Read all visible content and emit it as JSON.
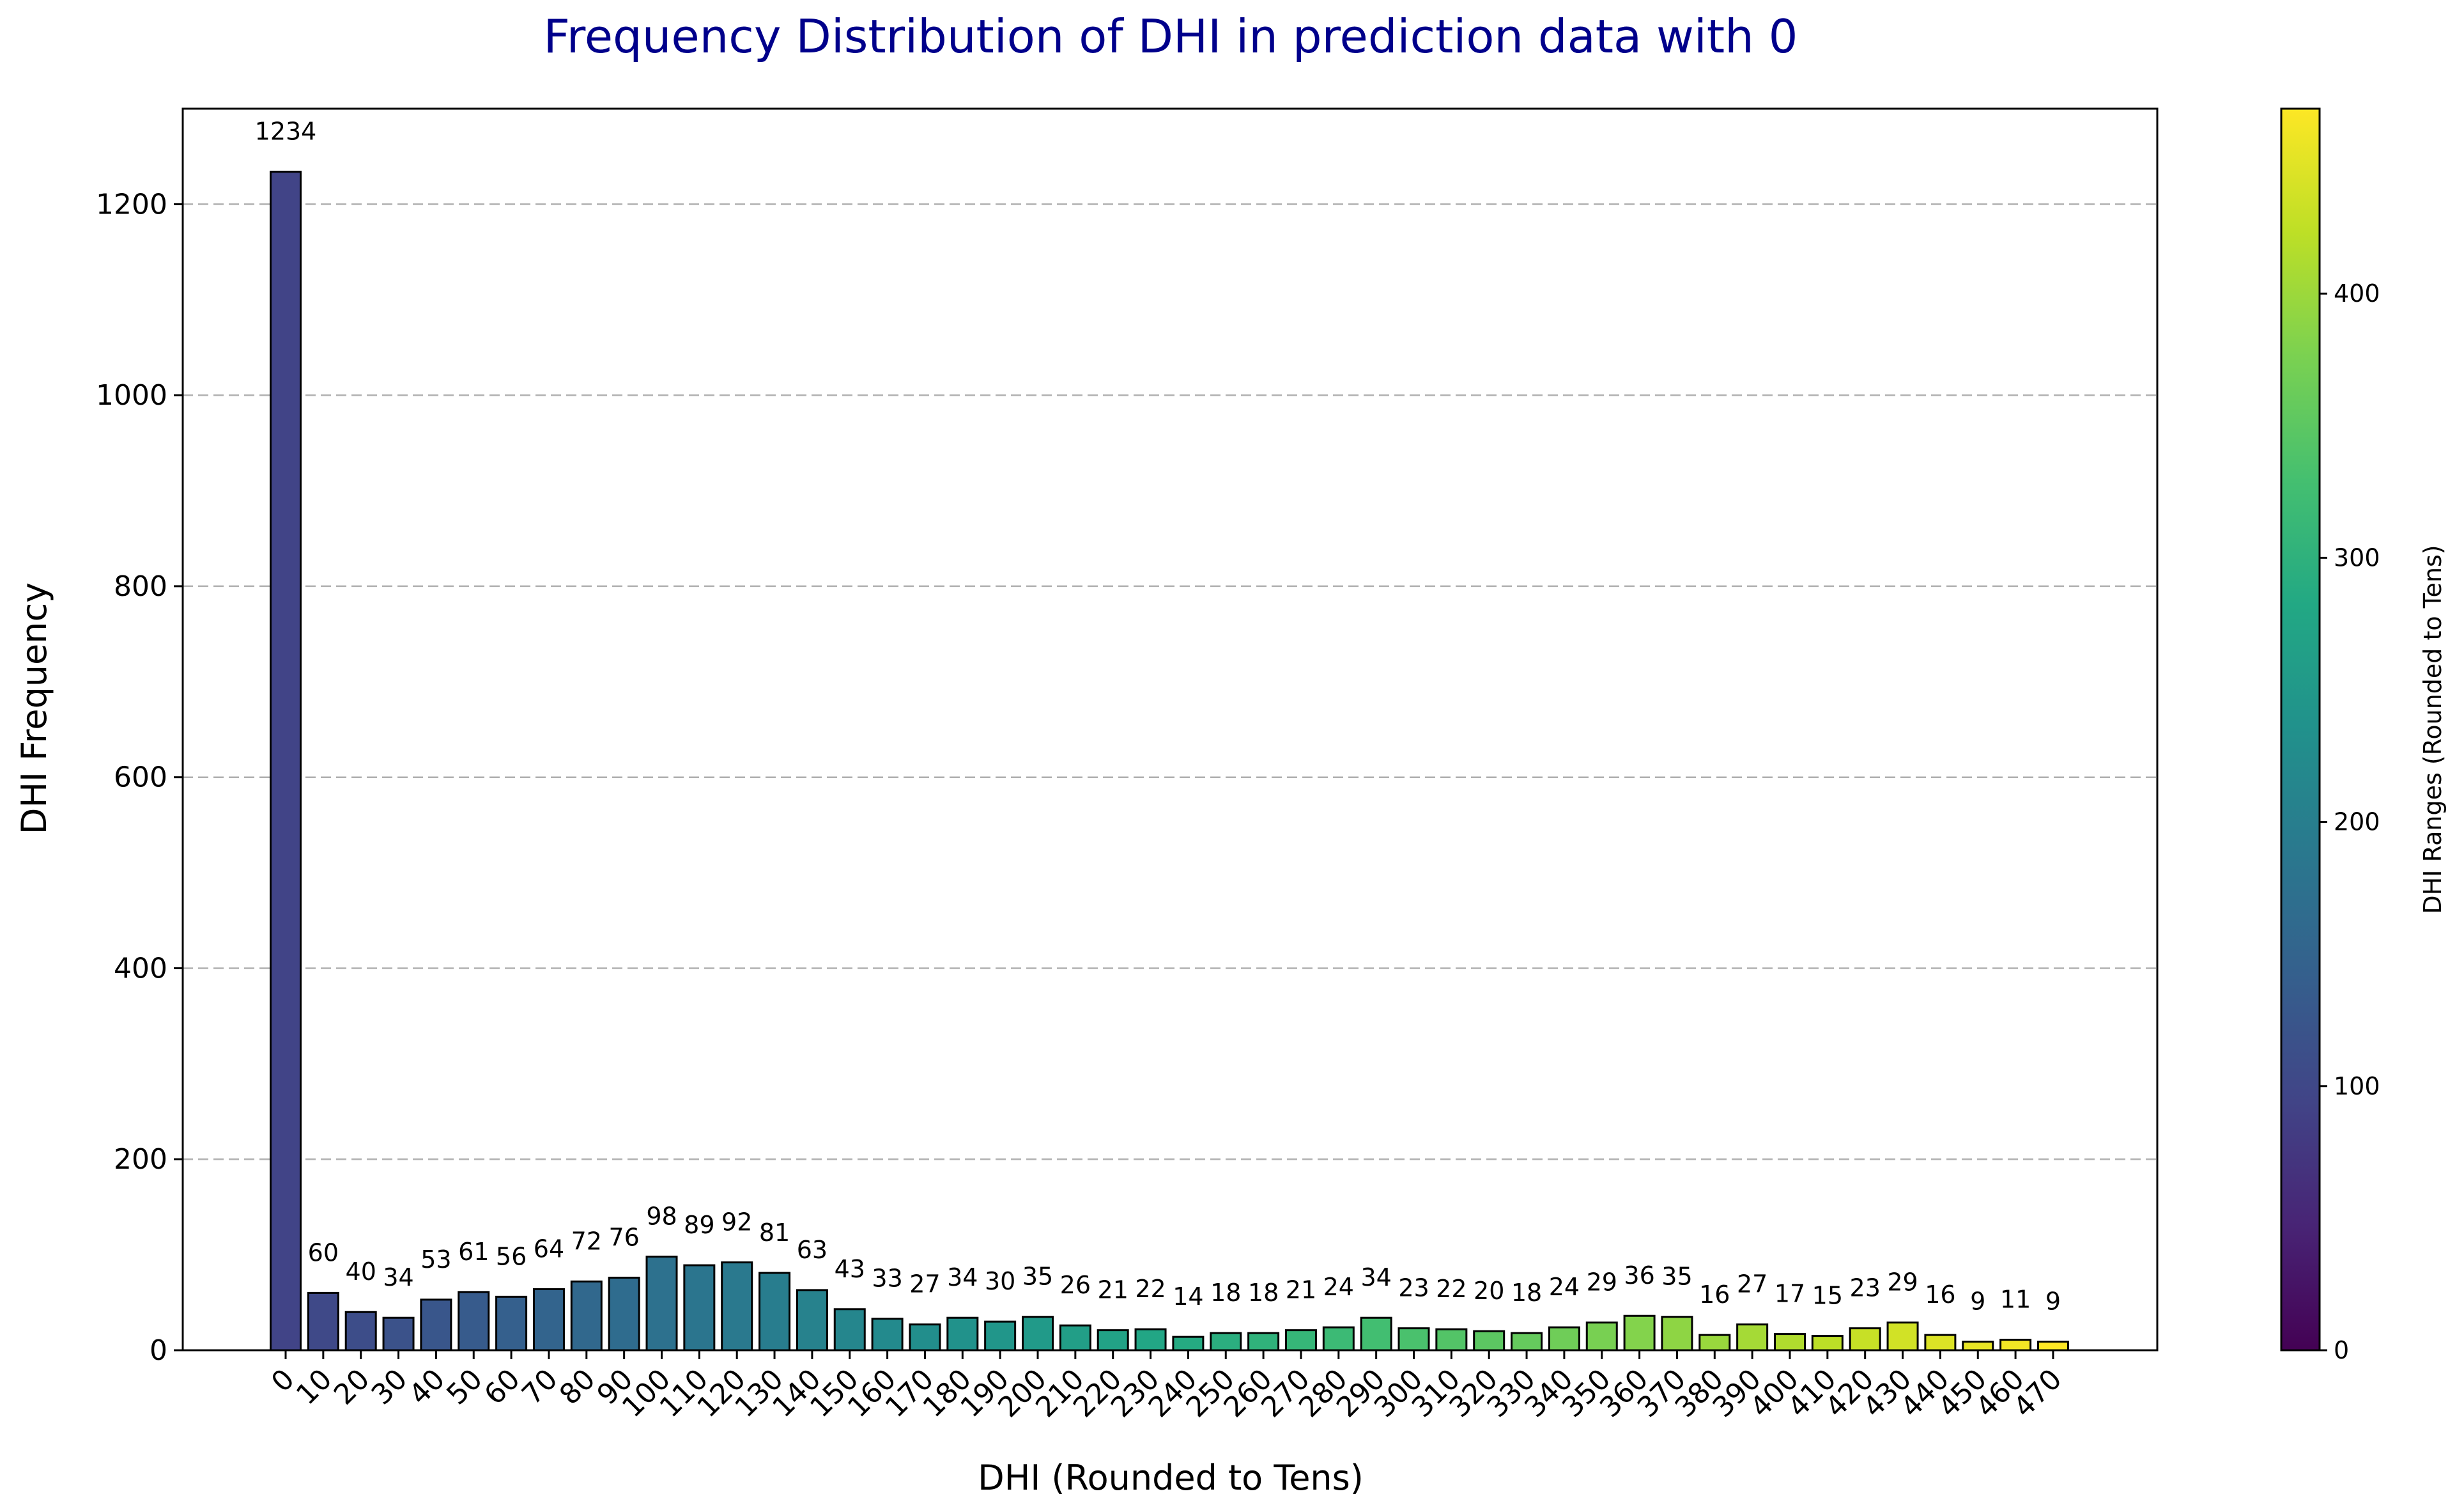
{
  "chart_data": {
    "type": "bar",
    "title": "Frequency Distribution of DHI in prediction data with 0",
    "xlabel": "DHI (Rounded to Tens)",
    "ylabel": "DHI Frequency",
    "categories": [
      "0",
      "10",
      "20",
      "30",
      "40",
      "50",
      "60",
      "70",
      "80",
      "90",
      "100",
      "110",
      "120",
      "130",
      "140",
      "150",
      "160",
      "170",
      "180",
      "190",
      "200",
      "210",
      "220",
      "230",
      "240",
      "250",
      "260",
      "270",
      "280",
      "290",
      "300",
      "310",
      "320",
      "330",
      "340",
      "350",
      "360",
      "370",
      "380",
      "390",
      "400",
      "410",
      "420",
      "430",
      "440",
      "450",
      "460",
      "470"
    ],
    "values": [
      1234,
      60,
      40,
      34,
      53,
      61,
      56,
      64,
      72,
      76,
      98,
      89,
      92,
      81,
      63,
      43,
      33,
      27,
      34,
      30,
      35,
      26,
      21,
      22,
      14,
      18,
      18,
      21,
      24,
      34,
      23,
      22,
      20,
      18,
      24,
      29,
      36,
      35,
      16,
      27,
      17,
      15,
      23,
      29,
      16,
      9,
      11,
      9
    ],
    "ylim": [
      0,
      1300
    ],
    "yticks": [
      0,
      200,
      400,
      600,
      800,
      1000,
      1200
    ],
    "grid": "y-dashed",
    "colormap": "viridis",
    "colorbar": {
      "label": "DHI Ranges (Rounded to Tens)",
      "range": [
        0,
        470
      ],
      "ticks": [
        0,
        100,
        200,
        300,
        400
      ]
    }
  }
}
